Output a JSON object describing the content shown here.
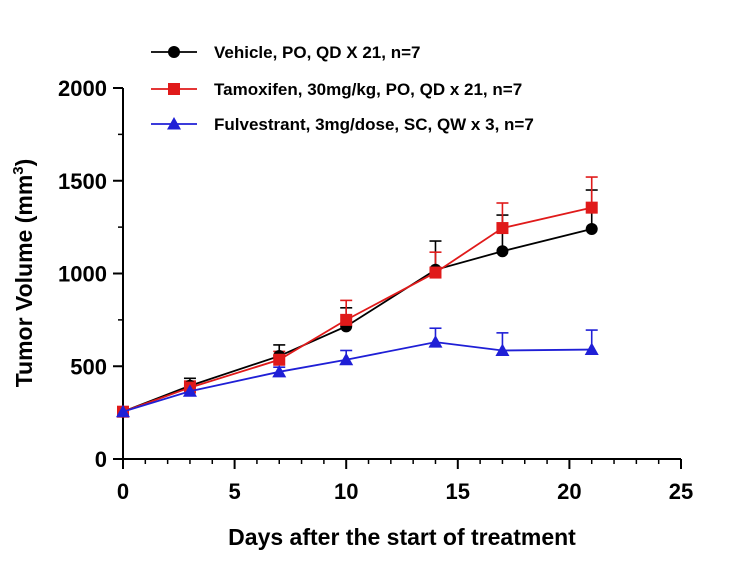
{
  "chart_data": {
    "type": "line",
    "title": "",
    "xlabel": "Days after the start of treatment",
    "ylabel": "Tumor Volume (mm",
    "ylabel_sup": "3",
    "ylabel_close": ")",
    "xlim": [
      0,
      25
    ],
    "ylim": [
      0,
      2000
    ],
    "x_ticks": [
      0,
      5,
      10,
      15,
      20,
      25
    ],
    "x_tick_labels": [
      "0",
      "5",
      "10",
      "15",
      "20",
      "25"
    ],
    "y_ticks": [
      0,
      500,
      1000,
      1500,
      2000
    ],
    "y_tick_labels": [
      "0",
      "500",
      "1000",
      "1500",
      "2000"
    ],
    "x_minor_step": 1,
    "y_minor_step": 250,
    "grid": false,
    "legend_position": "top",
    "series": [
      {
        "name": "Vehicle, PO, QD X 21, n=7",
        "color": "#000000",
        "marker": "circle",
        "x": [
          0,
          3,
          7,
          10,
          14,
          17,
          21
        ],
        "values": [
          255,
          395,
          555,
          715,
          1020,
          1120,
          1240
        ],
        "errors": [
          15,
          40,
          60,
          100,
          155,
          195,
          210
        ]
      },
      {
        "name": "Tamoxifen, 30mg/kg, PO, QD x 21, n=7",
        "color": "#e01a1a",
        "marker": "square",
        "x": [
          0,
          3,
          7,
          10,
          14,
          17,
          21
        ],
        "values": [
          255,
          385,
          535,
          750,
          1005,
          1245,
          1355
        ],
        "errors": [
          15,
          35,
          45,
          105,
          110,
          135,
          165
        ]
      },
      {
        "name": "Fulvestrant, 3mg/dose, SC, QW x 3, n=7",
        "color": "#1f1fd6",
        "marker": "triangle",
        "x": [
          0,
          3,
          7,
          10,
          14,
          17,
          21
        ],
        "values": [
          255,
          365,
          470,
          535,
          630,
          585,
          590
        ],
        "errors": [
          15,
          25,
          25,
          50,
          75,
          95,
          105
        ]
      }
    ]
  }
}
